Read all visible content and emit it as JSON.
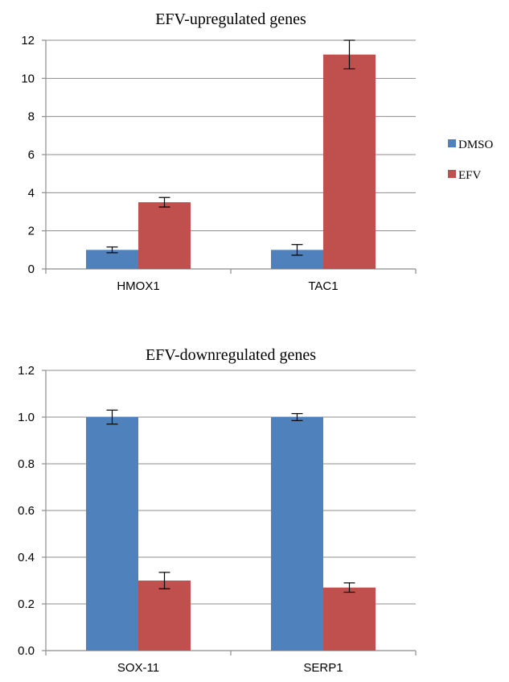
{
  "chart_data": [
    {
      "type": "bar",
      "title": "EFV-upregulated genes",
      "categories": [
        "HMOX1",
        "TAC1"
      ],
      "series": [
        {
          "name": "DMSO",
          "color": "#4f81bd",
          "values": [
            1.0,
            1.0
          ],
          "errors": [
            0.15,
            0.28
          ]
        },
        {
          "name": "EFV",
          "color": "#c0504d",
          "values": [
            3.5,
            11.25
          ],
          "errors": [
            0.25,
            0.75
          ]
        }
      ],
      "ylim": [
        0,
        12
      ],
      "yticks": [
        0,
        2,
        4,
        6,
        8,
        10,
        12
      ],
      "ytick_labels": [
        "0",
        "2",
        "4",
        "6",
        "8",
        "10",
        "12"
      ],
      "grid": true,
      "legend": "right"
    },
    {
      "type": "bar",
      "title": "EFV-downregulated genes",
      "categories": [
        "SOX-11",
        "SERP1"
      ],
      "series": [
        {
          "name": "DMSO",
          "color": "#4f81bd",
          "values": [
            1.0,
            1.0
          ],
          "errors": [
            0.03,
            0.015
          ]
        },
        {
          "name": "EFV",
          "color": "#c0504d",
          "values": [
            0.3,
            0.27
          ],
          "errors": [
            0.035,
            0.02
          ]
        }
      ],
      "ylim": [
        0,
        1.2
      ],
      "yticks": [
        0,
        0.2,
        0.4,
        0.6,
        0.8,
        1.0,
        1.2
      ],
      "ytick_labels": [
        "0.0",
        "0.2",
        "0.4",
        "0.6",
        "0.8",
        "1.0",
        "1.2"
      ],
      "grid": true,
      "legend": "none"
    }
  ]
}
